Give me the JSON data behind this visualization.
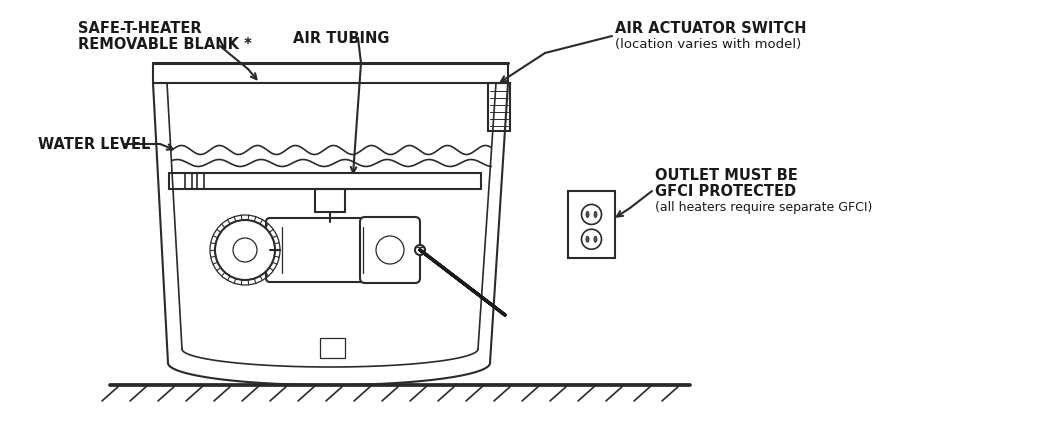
{
  "bg_color": "#ffffff",
  "line_color": "#2a2a2a",
  "text_color": "#1a1a1a",
  "labels": {
    "safe_t_heater_line1": "SAFE-T-HEATER",
    "safe_t_heater_line2": "REMOVABLE BLANK *",
    "air_tubing": "AIR TUBING",
    "air_actuator_line1": "AIR ACTUATOR SWITCH",
    "air_actuator_line2": "(location varies with model)",
    "water_level": "WATER LEVEL",
    "outlet_line1": "OUTLET MUST BE",
    "outlet_line2": "GFCI PROTECTED",
    "outlet_line3": "(all heaters require separate GFCI)"
  },
  "figsize": [
    10.6,
    4.43
  ],
  "dpi": 100,
  "lw_heavy": 2.2,
  "lw_med": 1.5,
  "lw_thin": 0.9,
  "fs_bold": 10.5,
  "fs_italic": 9.5
}
